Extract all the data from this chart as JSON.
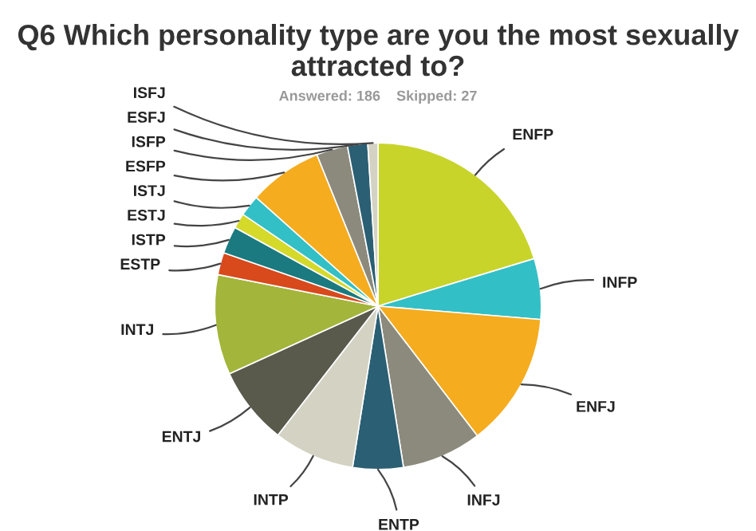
{
  "chart_data": {
    "type": "pie",
    "title": "Q6 Which personality type are you the most sexually attracted to?",
    "subtitle": "Answered: 186    Skipped: 27",
    "categories": [
      "ENFP",
      "INFP",
      "ENFJ",
      "INFJ",
      "ENTP",
      "INTP",
      "ENTJ",
      "INTJ",
      "ESTP",
      "ISTP",
      "ESTJ",
      "ISTJ",
      "ESFP",
      "ISFP",
      "ESFJ",
      "ISFJ"
    ],
    "values": [
      20.3,
      6,
      13.3,
      7.9,
      5,
      8,
      7.7,
      9.9,
      2.2,
      2.7,
      1.5,
      2.1,
      7.3,
      3.1,
      2,
      1
    ],
    "colors": [
      "#c8d42a",
      "#33bfc6",
      "#f5ac1f",
      "#8b8a7c",
      "#2b5f73",
      "#d4d2c3",
      "#595a4c",
      "#a3b53a",
      "#d8491c",
      "#1a7a7f",
      "#d4d92a",
      "#33bfc6",
      "#f5ac1f",
      "#8b8a7c",
      "#2b5f73",
      "#d4d2c3"
    ],
    "legend": false
  }
}
